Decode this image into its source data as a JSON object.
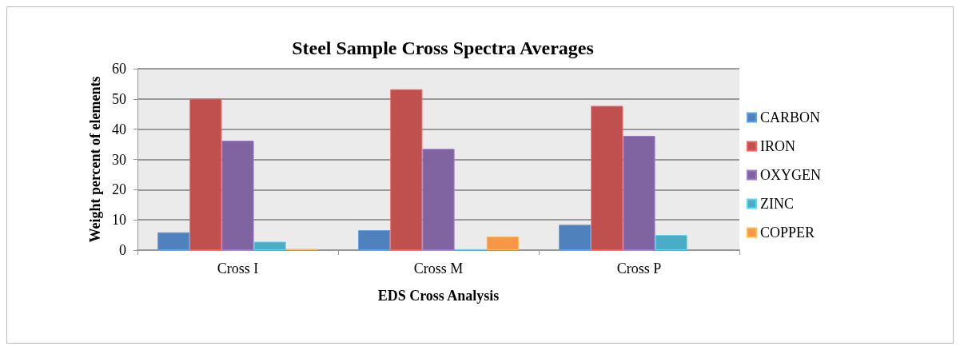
{
  "chart_data": {
    "type": "bar",
    "title": "Steel Sample Cross Spectra Averages",
    "xlabel": "EDS Cross Analysis",
    "ylabel": "Weight percent of elements",
    "categories": [
      "Cross I",
      "Cross M",
      "Cross P"
    ],
    "series": [
      {
        "name": "CARBON",
        "color": "#4f81bd",
        "values": [
          5.9,
          6.6,
          8.4
        ]
      },
      {
        "name": "IRON",
        "color": "#c0504d",
        "values": [
          50.1,
          53.2,
          47.7
        ]
      },
      {
        "name": "OXYGEN",
        "color": "#8064a2",
        "values": [
          36.2,
          33.5,
          37.8
        ]
      },
      {
        "name": "ZINC",
        "color": "#4bacc6",
        "values": [
          2.8,
          0.3,
          5.0
        ]
      },
      {
        "name": "COPPER",
        "color": "#f79646",
        "values": [
          0.4,
          4.5,
          null
        ]
      }
    ],
    "ylim": [
      0,
      60
    ],
    "yticks": [
      0,
      10,
      20,
      30,
      40,
      50,
      60
    ],
    "grid": "y",
    "legend": "right"
  }
}
